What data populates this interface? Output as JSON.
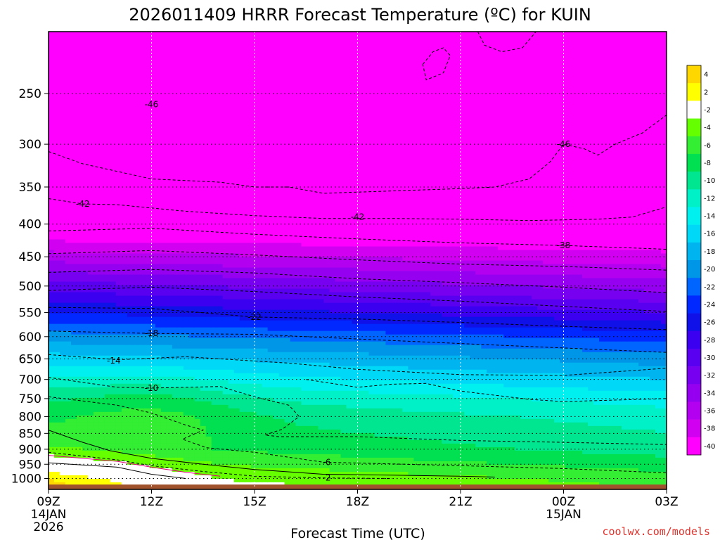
{
  "chart_data": {
    "type": "heatmap",
    "title": "2026011409 HRRR Forecast Temperature (ºC) for KUIN",
    "xlabel": "Forecast Time (UTC)",
    "ylabel": "",
    "credit": "coolwx.com/models",
    "y_axis": {
      "scale": "log-pressure",
      "unit": "hPa",
      "ylim": [
        1040,
        200
      ],
      "ticks": [
        250,
        300,
        350,
        400,
        450,
        500,
        550,
        600,
        650,
        700,
        750,
        800,
        850,
        900,
        950,
        1000
      ]
    },
    "x_axis": {
      "xlim": [
        0,
        18
      ],
      "unit": "forecast hour from 09Z 14JAN 2026",
      "ticks": [
        {
          "hour": 0,
          "label": "09Z",
          "sub1": "14JAN",
          "sub2": "2026"
        },
        {
          "hour": 3,
          "label": "12Z",
          "sub1": "",
          "sub2": ""
        },
        {
          "hour": 6,
          "label": "15Z",
          "sub1": "",
          "sub2": ""
        },
        {
          "hour": 9,
          "label": "18Z",
          "sub1": "",
          "sub2": ""
        },
        {
          "hour": 12,
          "label": "21Z",
          "sub1": "",
          "sub2": ""
        },
        {
          "hour": 15,
          "label": "00Z",
          "sub1": "15JAN",
          "sub2": ""
        },
        {
          "hour": 18,
          "label": "03Z",
          "sub1": "",
          "sub2": ""
        }
      ]
    },
    "grid": true,
    "below_ground_color": "#a0522d",
    "levels": [
      4,
      2,
      -2,
      -4,
      -6,
      -8,
      -10,
      -12,
      -14,
      -16,
      -18,
      -20,
      -22,
      -24,
      -26,
      -28,
      -30,
      -32,
      -34,
      -36,
      -38,
      -40
    ],
    "colorbar": {
      "placement": "right",
      "bins": [
        {
          "color": "#ffd700",
          "label": "4"
        },
        {
          "color": "#ffff00",
          "label": "2"
        },
        {
          "color": "#ffffff",
          "label": "-2"
        },
        {
          "color": "#66ff00",
          "label": "-4"
        },
        {
          "color": "#33ee33",
          "label": "-6"
        },
        {
          "color": "#00e050",
          "label": "-8"
        },
        {
          "color": "#00e690",
          "label": "-10"
        },
        {
          "color": "#00f0c8",
          "label": "-12"
        },
        {
          "color": "#00f0f0",
          "label": "-14"
        },
        {
          "color": "#00d8f8",
          "label": "-16"
        },
        {
          "color": "#00b4f0",
          "label": "-18"
        },
        {
          "color": "#0096e8",
          "label": "-20"
        },
        {
          "color": "#0064ff",
          "label": "-22"
        },
        {
          "color": "#0028ff",
          "label": "-24"
        },
        {
          "color": "#1010e8",
          "label": "-26"
        },
        {
          "color": "#3c00f0",
          "label": "-28"
        },
        {
          "color": "#5a00f0",
          "label": "-30"
        },
        {
          "color": "#7800f0",
          "label": "-32"
        },
        {
          "color": "#9600f0",
          "label": "-34"
        },
        {
          "color": "#b400f0",
          "label": "-36"
        },
        {
          "color": "#d200f0",
          "label": "-38"
        },
        {
          "color": "#ff00ff",
          "label": "-40"
        }
      ]
    },
    "isotherms": [
      {
        "value": -46,
        "style": "dashed",
        "label": "-46",
        "label_at": [
          3.0,
          260
        ],
        "points": [
          [
            0,
            308
          ],
          [
            1,
            322
          ],
          [
            3,
            340
          ],
          [
            5,
            344
          ],
          [
            6,
            350
          ],
          [
            7,
            350
          ],
          [
            8,
            358
          ],
          [
            10,
            355
          ],
          [
            12,
            352
          ],
          [
            13,
            350
          ],
          [
            14,
            340
          ],
          [
            14.6,
            320
          ],
          [
            15,
            300
          ],
          [
            15.6,
            305
          ],
          [
            16,
            312
          ],
          [
            16.5,
            300
          ],
          [
            17.3,
            288
          ],
          [
            18,
            270
          ]
        ]
      },
      {
        "value": -46,
        "style": "dashed",
        "label": "-46",
        "label_at": [
          15.0,
          300
        ],
        "points": []
      },
      {
        "value": -42,
        "style": "dashed",
        "label": "-42",
        "label_at": [
          1.0,
          372
        ],
        "points": [
          [
            0,
            365
          ],
          [
            1,
            372
          ],
          [
            2,
            373
          ],
          [
            4,
            382
          ],
          [
            6,
            388
          ],
          [
            8,
            392
          ],
          [
            10,
            392
          ],
          [
            12,
            393
          ],
          [
            14,
            395
          ],
          [
            16,
            393
          ],
          [
            17,
            390
          ],
          [
            18,
            376
          ]
        ]
      },
      {
        "value": -42,
        "style": "dashed",
        "label": "-42",
        "label_at": [
          9.0,
          390
        ],
        "points": []
      },
      {
        "value": -38,
        "style": "dashed",
        "label": "-38",
        "label_at": [
          15.0,
          432
        ],
        "points": [
          [
            0,
            410
          ],
          [
            3,
            406
          ],
          [
            6,
            415
          ],
          [
            9,
            422
          ],
          [
            12,
            428
          ],
          [
            15,
            432
          ],
          [
            18,
            438
          ]
        ]
      },
      {
        "value": -34,
        "style": "dashed",
        "label": "",
        "label_at": [
          0,
          0
        ],
        "points": [
          [
            0,
            445
          ],
          [
            3,
            440
          ],
          [
            6,
            447
          ],
          [
            9,
            455
          ],
          [
            12,
            462
          ],
          [
            15,
            466
          ],
          [
            18,
            472
          ]
        ]
      },
      {
        "value": -30,
        "style": "dashed",
        "label": "",
        "label_at": [
          0,
          0
        ],
        "points": [
          [
            0,
            476
          ],
          [
            3,
            471
          ],
          [
            6,
            477
          ],
          [
            9,
            487
          ],
          [
            12,
            494
          ],
          [
            15,
            502
          ],
          [
            18,
            512
          ]
        ]
      },
      {
        "value": -26,
        "style": "dashed",
        "label": "",
        "label_at": [
          0,
          0
        ],
        "points": [
          [
            0,
            508
          ],
          [
            3,
            502
          ],
          [
            6,
            510
          ],
          [
            9,
            520
          ],
          [
            12,
            528
          ],
          [
            15,
            538
          ],
          [
            18,
            548
          ]
        ]
      },
      {
        "value": -22,
        "style": "dashed",
        "label": "-22",
        "label_at": [
          6.0,
          559
        ],
        "points": [
          [
            0,
            540
          ],
          [
            3,
            542
          ],
          [
            6,
            559
          ],
          [
            9,
            563
          ],
          [
            12,
            570
          ],
          [
            15,
            578
          ],
          [
            18,
            585
          ]
        ]
      },
      {
        "value": -18,
        "style": "dashed",
        "label": "-18",
        "label_at": [
          3.0,
          593
        ],
        "points": [
          [
            0,
            588
          ],
          [
            3,
            593
          ],
          [
            6,
            595
          ],
          [
            9,
            605
          ],
          [
            12,
            615
          ],
          [
            15,
            625
          ],
          [
            18,
            635
          ]
        ]
      },
      {
        "value": -14,
        "style": "dashed",
        "label": "-14",
        "label_at": [
          1.9,
          654
        ],
        "points": [
          [
            0,
            640
          ],
          [
            2,
            652
          ],
          [
            4,
            645
          ],
          [
            7,
            660
          ],
          [
            9,
            675
          ],
          [
            12,
            688
          ],
          [
            15,
            690
          ],
          [
            18,
            672
          ]
        ]
      },
      {
        "value": -10,
        "style": "dashed",
        "label": "-10",
        "label_at": [
          3.0,
          722
        ],
        "points": [
          [
            0,
            695
          ],
          [
            2,
            720
          ],
          [
            3,
            722
          ],
          [
            5,
            718
          ],
          [
            6,
            745
          ],
          [
            7,
            768
          ],
          [
            7.3,
            800
          ],
          [
            6.8,
            838
          ],
          [
            6.3,
            855
          ],
          [
            6.7,
            860
          ],
          [
            9,
            860
          ],
          [
            12,
            872
          ],
          [
            15,
            878
          ],
          [
            18,
            885
          ]
        ]
      },
      {
        "value": -12,
        "style": "dashed",
        "label": "",
        "label_at": [
          0,
          0
        ],
        "points": [
          [
            7.5,
            700
          ],
          [
            9,
            720
          ],
          [
            10,
            712
          ],
          [
            11,
            710
          ],
          [
            12,
            730
          ],
          [
            14,
            752
          ],
          [
            15,
            758
          ],
          [
            18,
            750
          ]
        ]
      },
      {
        "value": -6,
        "style": "dashed",
        "label": "-6",
        "label_at": [
          8.1,
          943
        ],
        "points": [
          [
            0,
            745
          ],
          [
            2,
            768
          ],
          [
            3,
            790
          ],
          [
            4,
            825
          ],
          [
            4.5,
            840
          ],
          [
            3.9,
            868
          ],
          [
            4.6,
            895
          ],
          [
            6,
            910
          ],
          [
            8,
            943
          ],
          [
            12,
            955
          ],
          [
            15,
            965
          ],
          [
            18,
            980
          ]
        ]
      },
      {
        "value": -4,
        "style": "solid",
        "label": "",
        "label_at": [
          0,
          0
        ],
        "points": [
          [
            0,
            840
          ],
          [
            1,
            878
          ],
          [
            1.8,
            905
          ],
          [
            3,
            930
          ],
          [
            4.5,
            950
          ],
          [
            6,
            968
          ],
          [
            8,
            985
          ],
          [
            10,
            988
          ],
          [
            12,
            992
          ],
          [
            13,
            995
          ]
        ]
      },
      {
        "value": -2,
        "style": "dashed",
        "label": "-2",
        "label_at": [
          8.1,
          998
        ],
        "points": [
          [
            0,
            910
          ],
          [
            2,
            935
          ],
          [
            3,
            955
          ],
          [
            4.5,
            975
          ],
          [
            6,
            992
          ],
          [
            8,
            998
          ],
          [
            10,
            1000
          ]
        ]
      },
      {
        "value": 2,
        "style": "solid",
        "label": "",
        "label_at": [
          0,
          0
        ],
        "points": [
          [
            0,
            945
          ],
          [
            2,
            960
          ],
          [
            3,
            985
          ],
          [
            4,
            1000
          ]
        ]
      },
      {
        "value": 0,
        "style": "solid-red",
        "label": "",
        "label_at": [
          0,
          0
        ],
        "points": [
          [
            0,
            920
          ],
          [
            2,
            940
          ],
          [
            3,
            960
          ],
          [
            4,
            978
          ],
          [
            5,
            992
          ]
        ]
      },
      {
        "value": -46,
        "style": "dashed",
        "label": "",
        "label_at": [
          0,
          0
        ],
        "points": [
          [
            10.9,
            225
          ],
          [
            11.2,
            215
          ],
          [
            11.5,
            212
          ],
          [
            11.7,
            218
          ],
          [
            11.5,
            232
          ],
          [
            11.0,
            238
          ],
          [
            10.9,
            225
          ]
        ]
      },
      {
        "value": -46,
        "style": "dashed",
        "label": "",
        "label_at": [
          0,
          0
        ],
        "points": [
          [
            12.5,
            200
          ],
          [
            12.7,
            210
          ],
          [
            13.2,
            215
          ],
          [
            13.8,
            212
          ],
          [
            14.2,
            200
          ]
        ]
      }
    ],
    "surface_pressure_hpa": [
      1022,
      1022,
      1022,
      1022,
      1022,
      1022,
      1022,
      1022,
      1022,
      1022,
      1022,
      1022,
      1022,
      1022,
      1022,
      1022,
      1022,
      1022,
      1022
    ]
  }
}
